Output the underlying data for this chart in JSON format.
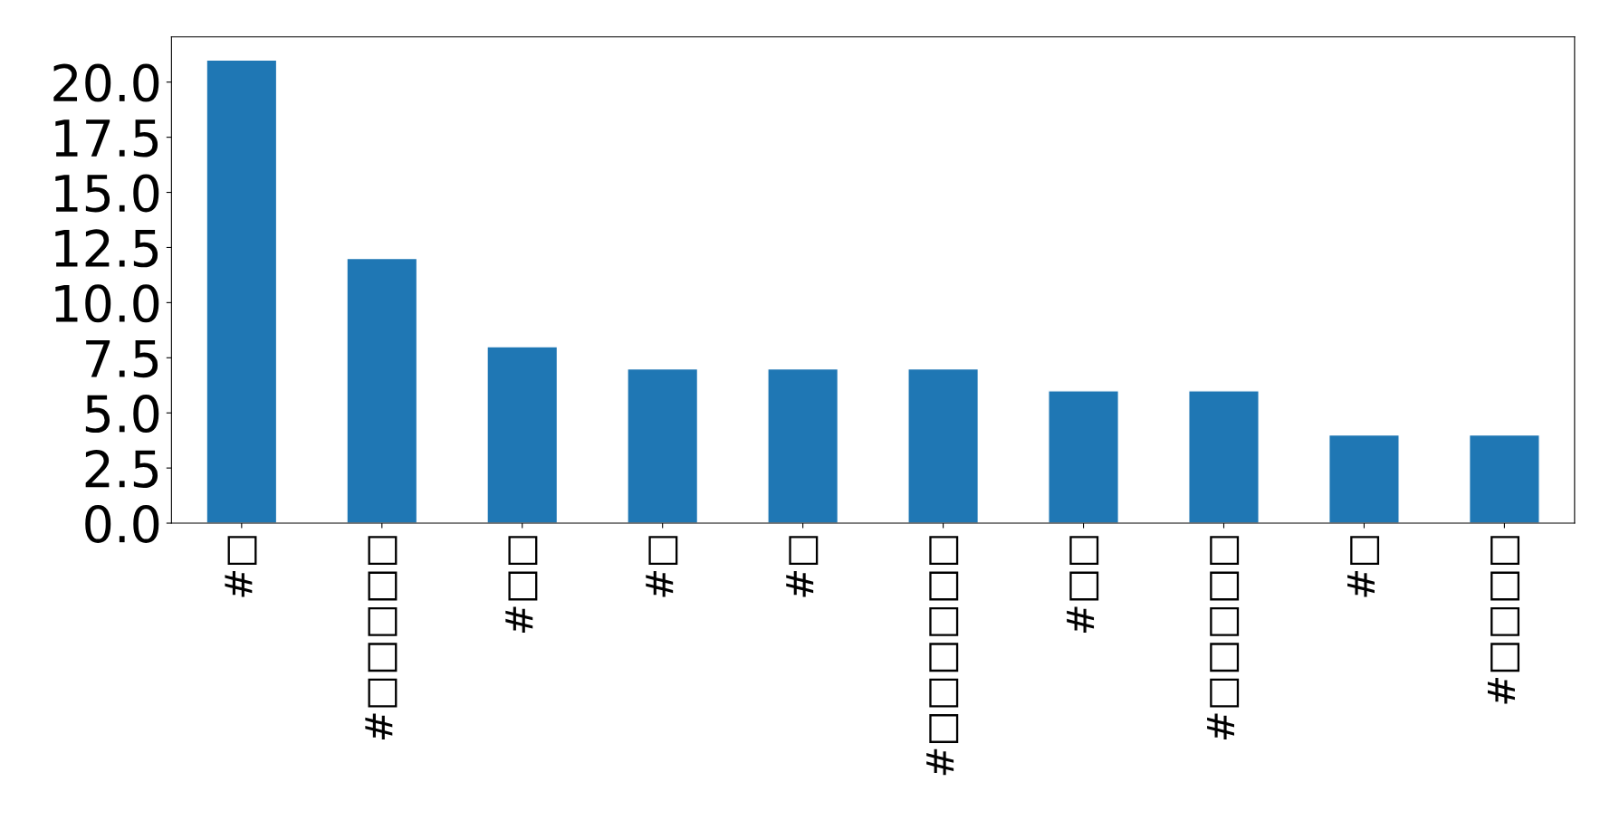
{
  "chart_data": {
    "type": "bar",
    "categories": [
      "#□",
      "#□□□□□",
      "#□□",
      "#□",
      "#□",
      "#□□□□□□",
      "#□□",
      "#□□□□□",
      "#□",
      "#□□□□"
    ],
    "values": [
      21,
      12,
      8,
      7,
      7,
      7,
      6,
      6,
      4,
      4
    ],
    "color": "#1f77b4",
    "ylim": [
      0,
      22.05
    ],
    "yticks": [
      {
        "value": 0,
        "label": "0.0"
      },
      {
        "value": 2.5,
        "label": "2.5"
      },
      {
        "value": 5,
        "label": "5.0"
      },
      {
        "value": 7.5,
        "label": "7.5"
      },
      {
        "value": 10,
        "label": "10.0"
      },
      {
        "value": 12.5,
        "label": "12.5"
      },
      {
        "value": 15,
        "label": "15.0"
      },
      {
        "value": 17.5,
        "label": "17.5"
      },
      {
        "value": 20,
        "label": "20.0"
      }
    ],
    "grid": false,
    "legend": false
  }
}
